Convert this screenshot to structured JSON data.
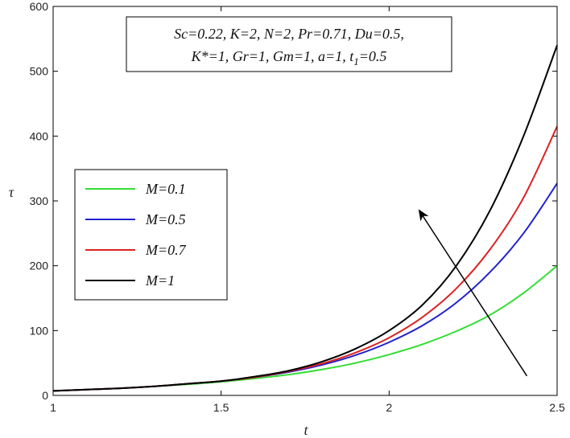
{
  "chart_data": {
    "type": "line",
    "title": "",
    "xlabel": "t",
    "ylabel": "τ",
    "xlim": [
      1,
      2.5
    ],
    "ylim": [
      0,
      600
    ],
    "xticks": [
      1,
      1.5,
      2,
      2.5
    ],
    "yticks": [
      0,
      100,
      200,
      300,
      400,
      500,
      600
    ],
    "xtick_labels": [
      "1",
      "1.5",
      "2",
      "2.5"
    ],
    "ytick_labels": [
      "0",
      "100",
      "200",
      "300",
      "400",
      "500",
      "600"
    ],
    "grid": false,
    "legend_position": "left",
    "annotation": {
      "line1": "Sc=0.22, K=2, N=2, Pr=0.71, Du=0.5,",
      "line2_before_sub": "K*=1, Gr=1, Gm=1, a=1, t",
      "line2_sub": "1",
      "line2_after_sub": "=0.5"
    },
    "arrow": {
      "from": [
        2.41,
        30
      ],
      "to": [
        2.09,
        285
      ],
      "color": "#000000"
    },
    "x": [
      1.0,
      1.1,
      1.2,
      1.3,
      1.4,
      1.5,
      1.6,
      1.7,
      1.8,
      1.9,
      2.0,
      2.1,
      2.2,
      2.3,
      2.4,
      2.5
    ],
    "series": [
      {
        "name": "M=0.1",
        "color": "#33dd33",
        "values": [
          7,
          9,
          11,
          14,
          17,
          21,
          26,
          32,
          40,
          50,
          63,
          79,
          99,
          124,
          158,
          200
        ]
      },
      {
        "name": "M=0.5",
        "color": "#2222cc",
        "values": [
          7,
          9,
          11,
          14,
          18,
          22,
          28,
          36,
          47,
          62,
          82,
          108,
          143,
          190,
          250,
          327
        ]
      },
      {
        "name": "M=0.7",
        "color": "#dd2222",
        "values": [
          7,
          9,
          11,
          14,
          18,
          22,
          28,
          37,
          49,
          66,
          89,
          121,
          165,
          225,
          305,
          415
        ]
      },
      {
        "name": "M=1",
        "color": "#000000",
        "values": [
          7,
          9,
          11,
          14,
          18,
          22,
          29,
          38,
          52,
          72,
          100,
          140,
          200,
          285,
          400,
          540
        ]
      }
    ]
  }
}
